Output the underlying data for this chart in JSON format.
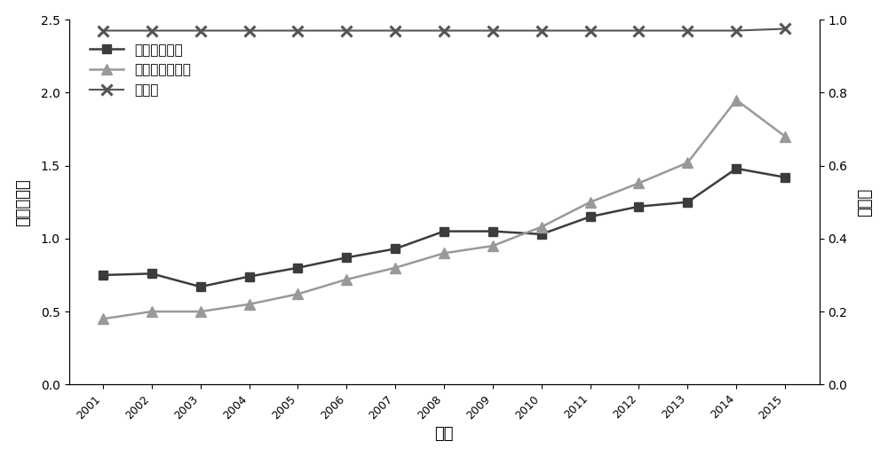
{
  "years": [
    2001,
    2002,
    2003,
    2004,
    2005,
    2006,
    2007,
    2008,
    2009,
    2010,
    2011,
    2012,
    2013,
    2014,
    2015
  ],
  "water_footprint": [
    0.75,
    0.76,
    0.67,
    0.74,
    0.8,
    0.87,
    0.93,
    1.05,
    1.05,
    1.03,
    1.15,
    1.22,
    1.25,
    1.48,
    1.42
  ],
  "eco_footprint": [
    0.45,
    0.5,
    0.5,
    0.55,
    0.62,
    0.72,
    0.8,
    0.9,
    0.95,
    1.08,
    1.25,
    1.38,
    1.52,
    1.95,
    1.7
  ],
  "coupling": [
    0.97,
    0.97,
    0.97,
    0.97,
    0.97,
    0.97,
    0.97,
    0.97,
    0.97,
    0.97,
    0.97,
    0.97,
    0.97,
    0.97,
    0.975
  ],
  "water_color": "#3c3c3c",
  "eco_color": "#999999",
  "coupling_color": "#555555",
  "ylabel_left": "归一化指数",
  "ylabel_right": "耦合度",
  "xlabel": "年份",
  "legend_water": "水足迹归一化",
  "legend_eco": "生态足迹归一化",
  "legend_coupling": "耦合度",
  "ylim_left": [
    0,
    2.5
  ],
  "ylim_right": [
    0,
    1.0
  ],
  "yticks_left": [
    0,
    0.5,
    1.0,
    1.5,
    2.0,
    2.5
  ],
  "yticks_right": [
    0,
    0.2,
    0.4,
    0.6,
    0.8,
    1.0
  ]
}
